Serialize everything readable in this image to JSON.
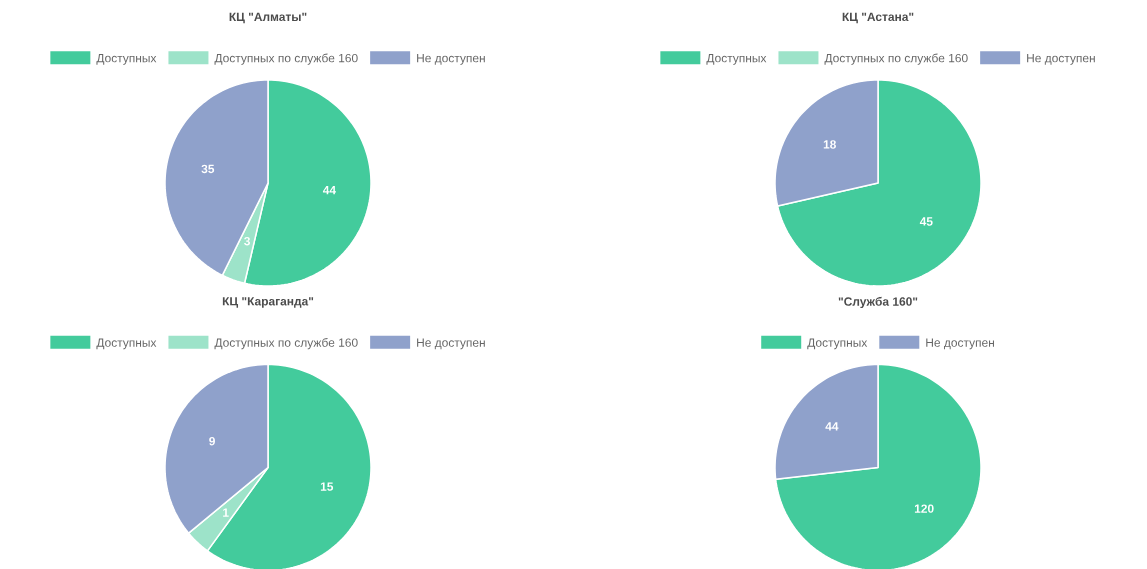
{
  "chart_data": [
    {
      "type": "pie",
      "title": "КЦ \"Алматы\"",
      "categories": [
        "Доступных",
        "Доступных по службе 160",
        "Не доступен"
      ],
      "values": [
        44,
        3,
        35
      ],
      "colors": [
        "#43cb9c",
        "#9de3c9",
        "#8fa1cb"
      ],
      "legend": "top",
      "data_labels": true
    },
    {
      "type": "pie",
      "title": "КЦ \"Астана\"",
      "categories": [
        "Доступных",
        "Доступных по службе 160",
        "Не доступен"
      ],
      "values": [
        45,
        0,
        18
      ],
      "colors": [
        "#43cb9c",
        "#9de3c9",
        "#8fa1cb"
      ],
      "legend": "top",
      "data_labels": true
    },
    {
      "type": "pie",
      "title": "КЦ \"Караганда\"",
      "categories": [
        "Доступных",
        "Доступных по службе 160",
        "Не доступен"
      ],
      "values": [
        15,
        1,
        9
      ],
      "colors": [
        "#43cb9c",
        "#9de3c9",
        "#8fa1cb"
      ],
      "legend": "top",
      "data_labels": true
    },
    {
      "type": "pie",
      "title": "\"Служба 160\"",
      "categories": [
        "Доступных",
        "Не доступен"
      ],
      "values": [
        120,
        44
      ],
      "colors": [
        "#43cb9c",
        "#8fa1cb"
      ],
      "legend": "top",
      "data_labels": true
    }
  ]
}
